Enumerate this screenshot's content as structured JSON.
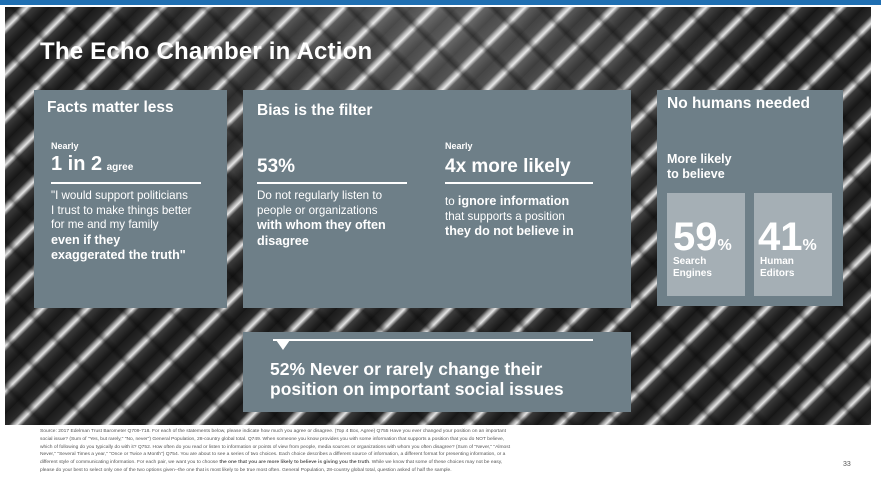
{
  "slide": {
    "title": "The Echo Chamber in Action",
    "page_number": "33"
  },
  "facts_panel": {
    "title": "Facts matter less",
    "nearly": "Nearly",
    "stat_big": "1 in 2",
    "stat_suffix": "agree",
    "quote_line1": "\"I would support politicians",
    "quote_line2": "I trust to make things better",
    "quote_line3": "for me and my family",
    "quote_bold1": "even if they",
    "quote_bold2": "exaggerated the truth\""
  },
  "bias_panel": {
    "title": "Bias is the filter",
    "left_stat": "53%",
    "left_line1": "Do not regularly listen to",
    "left_line2": "people or organizations",
    "left_bold1": "with whom they often",
    "left_bold2": "disagree",
    "right_nearly": "Nearly",
    "right_stat": "4x more likely",
    "right_to": "to",
    "right_bold1": "ignore information",
    "right_line2": "that supports a position",
    "right_bold2": "they do not believe in"
  },
  "humans_panel": {
    "title": "No humans needed",
    "subtitle_line1": "More likely",
    "subtitle_line2": "to believe",
    "box1_value": "59",
    "box1_unit": "%",
    "box1_label1": "Search",
    "box1_label2": "Engines",
    "box2_value": "41",
    "box2_unit": "%",
    "box2_label1": "Human",
    "box2_label2": "Editors"
  },
  "bottom_panel": {
    "line1": "52% Never or rarely change their",
    "line2": "position on important social issues"
  },
  "source_note": {
    "line1": "Source: 2017 Edelman Trust Barometer Q709-718. For each of the statements below, please indicate how much you agree or disagree. (Top 4 Box, Agree) Q755 Have you ever changed your position on an important",
    "line2": "social issue? (Sum of \"Yes, but rarely,\" \"No, never\") General Population, 28-country global total. Q749. When someone you know provides you with some information that supports a position that you do NOT believe,",
    "line3": "which of following do you typically do with it? Q752. How often do you read or listen to information or points of view from people, media sources or organizations with whom you often disagree? (Sum of \"Never,\" \"Almost",
    "line4": "Never,\" \"Several Times a year,\" \"Once or Twice a Month\") Q754. You are about to see a series of two choices. Each choice describes a different source of information, a different format for presenting information, or a",
    "line5a": "different style of communicating information. For each pair, we want you to choose ",
    "line5b": "the one that you are more likely to believe is giving you the truth",
    "line5c": ". While we know that some of these choices may not be easy,",
    "line6": "please do your best to select only one of the two options given--the one that is most likely to be true most often. General Population, 28-country global total, question asked of half the sample."
  }
}
